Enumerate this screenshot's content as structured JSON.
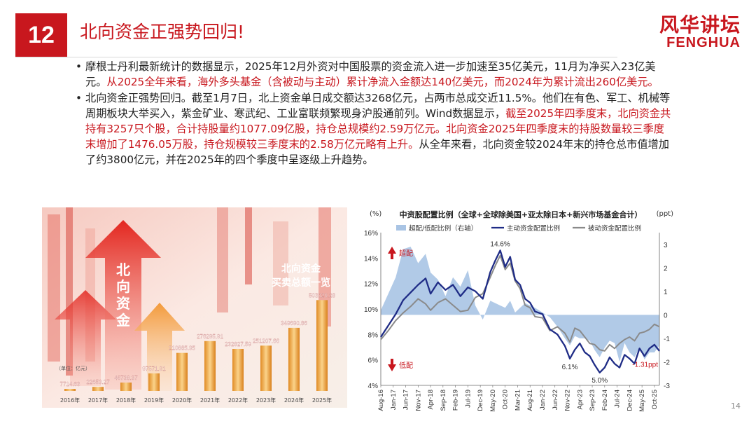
{
  "slide": {
    "number": "12",
    "title": "北向资金正强势回归!",
    "brand_cn": "风华讲坛",
    "brand_en": "FENGHUA",
    "page": "14"
  },
  "bullets": [
    {
      "segments": [
        {
          "text": "摩根士丹利最新统计的数据显示，2025年12月外资对中国股票的资金流入进一步加速至35亿美元，11月为净买入23亿美元。",
          "red": false
        },
        {
          "text": "从2025全年来看，海外多头基金（含被动与主动）累计净流入金额达140亿美元，而2024年为累计流出260亿美元。",
          "red": true
        }
      ]
    },
    {
      "segments": [
        {
          "text": "北向资金正强势回归。截至1月7日，北上资金单日成交额达3268亿元，占两市总成交近11.5%。他们在有色、军工、机械等周期板块大举买入，紫金矿业、寒武纪、工业富联频繁现身沪股通前列。Wind数据显示，",
          "red": false
        },
        {
          "text": "截至2025年四季度末，北向资金共持有3257只个股，合计持股量约1077.09亿股，持仓总规模约2.59万亿元。北向资金2025年四季度末的持股数量较三季度末增加了1476.05万股，持仓规模较三季度末的2.58万亿元略有上升。",
          "red": true
        },
        {
          "text": "从全年来看，北向资金较2024年末的持仓总市值增加了约3800亿元，并在2025年的四个季度中呈逐级上升趋势。",
          "red": false
        }
      ]
    }
  ],
  "photo": {
    "arrow_text": "北向资金",
    "headline": "北向资金买卖总额一览",
    "unit_note": "（单位：亿元）",
    "bars": [
      {
        "year": "2016年",
        "value": 7714.63,
        "label": "7714.63"
      },
      {
        "year": "2017年",
        "value": 22653.27,
        "label": "22653.27"
      },
      {
        "year": "2018年",
        "value": 46738.37,
        "label": "46738.37"
      },
      {
        "year": "2019年",
        "value": 97571.91,
        "label": "97571.91"
      },
      {
        "year": "2020年",
        "value": 210885.95,
        "label": "210885.95"
      },
      {
        "year": "2021年",
        "value": 276295.91,
        "label": "276295.91"
      },
      {
        "year": "2022年",
        "value": 232827.59,
        "label": "232827.59"
      },
      {
        "year": "2023年",
        "value": 251207.66,
        "label": "251207.66"
      },
      {
        "year": "2024年",
        "value": 349690.86,
        "label": "349690.86"
      },
      {
        "year": "2025年",
        "value": 503329.28,
        "label": "503329.28"
      }
    ]
  },
  "chart_data": [
    {
      "type": "bar",
      "title": "北向资金买卖总额一览",
      "ylabel": "（单位：亿元）",
      "categories": [
        "2016年",
        "2017年",
        "2018年",
        "2019年",
        "2020年",
        "2021年",
        "2022年",
        "2023年",
        "2024年",
        "2025年"
      ],
      "values": [
        7714.63,
        22653.27,
        46738.37,
        97571.91,
        210885.95,
        276295.91,
        232827.59,
        251207.66,
        349690.86,
        503329.28
      ]
    },
    {
      "type": "line",
      "title": "中资股配置比例（全球+全球除美国+亚太除日本+新兴市场基金合计）",
      "ylabel_left": "(%)",
      "ylabel_right": "(ppt)",
      "ylim_left": [
        4,
        16
      ],
      "ylim_right": [
        -3,
        3.5
      ],
      "yticks_left": [
        "4%",
        "6%",
        "8%",
        "10%",
        "12%",
        "14%",
        "16%"
      ],
      "yticks_right": [
        "-3",
        "-2",
        "-1",
        "0",
        "1",
        "2",
        "3"
      ],
      "x_ticks": [
        "Aug-16",
        "Jan-17",
        "Jun-17",
        "Nov-17",
        "Apr-18",
        "Sep-18",
        "Feb-19",
        "Jul-19",
        "Dec-19",
        "May-20",
        "Oct-20",
        "Mar-21",
        "Aug-21",
        "Jan-22",
        "Jun-22",
        "Nov-22",
        "Apr-23",
        "Sep-23",
        "Feb-24",
        "Jul-24",
        "Dec-24",
        "May-25",
        "Oct-25"
      ],
      "x_ticks_month": [
        0,
        5,
        10,
        15,
        20,
        25,
        30,
        35,
        40,
        45,
        50,
        55,
        60,
        65,
        70,
        75,
        80,
        85,
        90,
        95,
        100,
        105,
        110
      ],
      "legend": [
        "超配/低配比例（右轴）",
        "主动资金配置比例",
        "被动资金配置比例"
      ],
      "annotations": [
        "超配",
        "低配",
        "14.6%",
        "6.1%",
        "5.0%",
        "-1.31ppt"
      ],
      "series": [
        {
          "name": "主动资金配置比例",
          "axis": "left",
          "color": "#1f2c86",
          "x": [
            0,
            3,
            6,
            9,
            12,
            15,
            18,
            20,
            23,
            26,
            29,
            32,
            35,
            38,
            41,
            44,
            46,
            48,
            50,
            52,
            54,
            56,
            58,
            60,
            62,
            65,
            68,
            71,
            74,
            76,
            78,
            80,
            82,
            84,
            86,
            88,
            90,
            92,
            94,
            96,
            98,
            100,
            102,
            104,
            106,
            108,
            110,
            112
          ],
          "y": [
            7.8,
            8.7,
            9.6,
            10.7,
            11.3,
            11.9,
            12.4,
            11.2,
            12.1,
            11.5,
            11.9,
            11.0,
            11.7,
            11.4,
            10.8,
            12.9,
            13.8,
            14.6,
            13.3,
            14.1,
            12.3,
            11.9,
            10.8,
            10.5,
            9.8,
            9.6,
            8.4,
            8.0,
            7.1,
            6.1,
            6.8,
            7.3,
            6.6,
            6.3,
            5.6,
            5.0,
            5.4,
            6.2,
            5.7,
            5.4,
            6.4,
            6.1,
            5.7,
            6.9,
            6.3,
            6.9,
            7.2,
            6.7
          ]
        },
        {
          "name": "被动资金配置比例",
          "axis": "left",
          "color": "#8a8a8a",
          "x": [
            0,
            3,
            6,
            9,
            12,
            15,
            18,
            20,
            23,
            26,
            29,
            32,
            35,
            38,
            41,
            44,
            46,
            48,
            50,
            52,
            54,
            56,
            58,
            60,
            62,
            65,
            68,
            71,
            74,
            76,
            78,
            80,
            82,
            84,
            86,
            88,
            90,
            92,
            94,
            96,
            98,
            100,
            102,
            104,
            106,
            108,
            110,
            112
          ],
          "y": [
            7.6,
            8.3,
            9.1,
            9.7,
            10.2,
            10.8,
            10.4,
            9.9,
            10.5,
            10.8,
            10.3,
            9.8,
            9.9,
            10.9,
            11.2,
            12.5,
            13.4,
            14.2,
            13.1,
            13.6,
            12.2,
            11.6,
            10.3,
            10.1,
            9.4,
            9.3,
            8.3,
            8.6,
            8.1,
            7.4,
            8.5,
            8.3,
            7.8,
            7.3,
            7.2,
            6.8,
            6.7,
            7.2,
            6.9,
            7.3,
            7.6,
            7.8,
            7.5,
            8.1,
            8.2,
            8.4,
            8.8,
            8.6
          ]
        },
        {
          "name": "超配/低配比例（右轴）",
          "axis": "right",
          "color": "#a9c4e4",
          "x": [
            0,
            3,
            6,
            9,
            12,
            15,
            18,
            20,
            23,
            26,
            29,
            32,
            35,
            38,
            41,
            44,
            46,
            48,
            50,
            52,
            54,
            56,
            58,
            60,
            62,
            65,
            68,
            71,
            74,
            76,
            78,
            80,
            82,
            84,
            86,
            88,
            90,
            92,
            94,
            96,
            98,
            100,
            102,
            104,
            106,
            108,
            110,
            112
          ],
          "y": [
            0.2,
            0.9,
            1.6,
            2.8,
            2.9,
            2.2,
            2.6,
            1.8,
            1.5,
            0.8,
            1.6,
            1.2,
            1.9,
            0.4,
            -0.2,
            0.6,
            0.5,
            0.4,
            0.3,
            0.6,
            0.1,
            0.3,
            0.5,
            0.4,
            0.3,
            0.1,
            -0.1,
            -0.5,
            -1.0,
            -1.3,
            -0.9,
            -1.0,
            -1.0,
            -1.1,
            -1.5,
            -1.8,
            -1.4,
            -1.1,
            -1.2,
            -2.0,
            -1.2,
            -1.6,
            -1.8,
            -1.4,
            -1.9,
            -1.6,
            -1.6,
            -1.3
          ]
        }
      ]
    }
  ]
}
